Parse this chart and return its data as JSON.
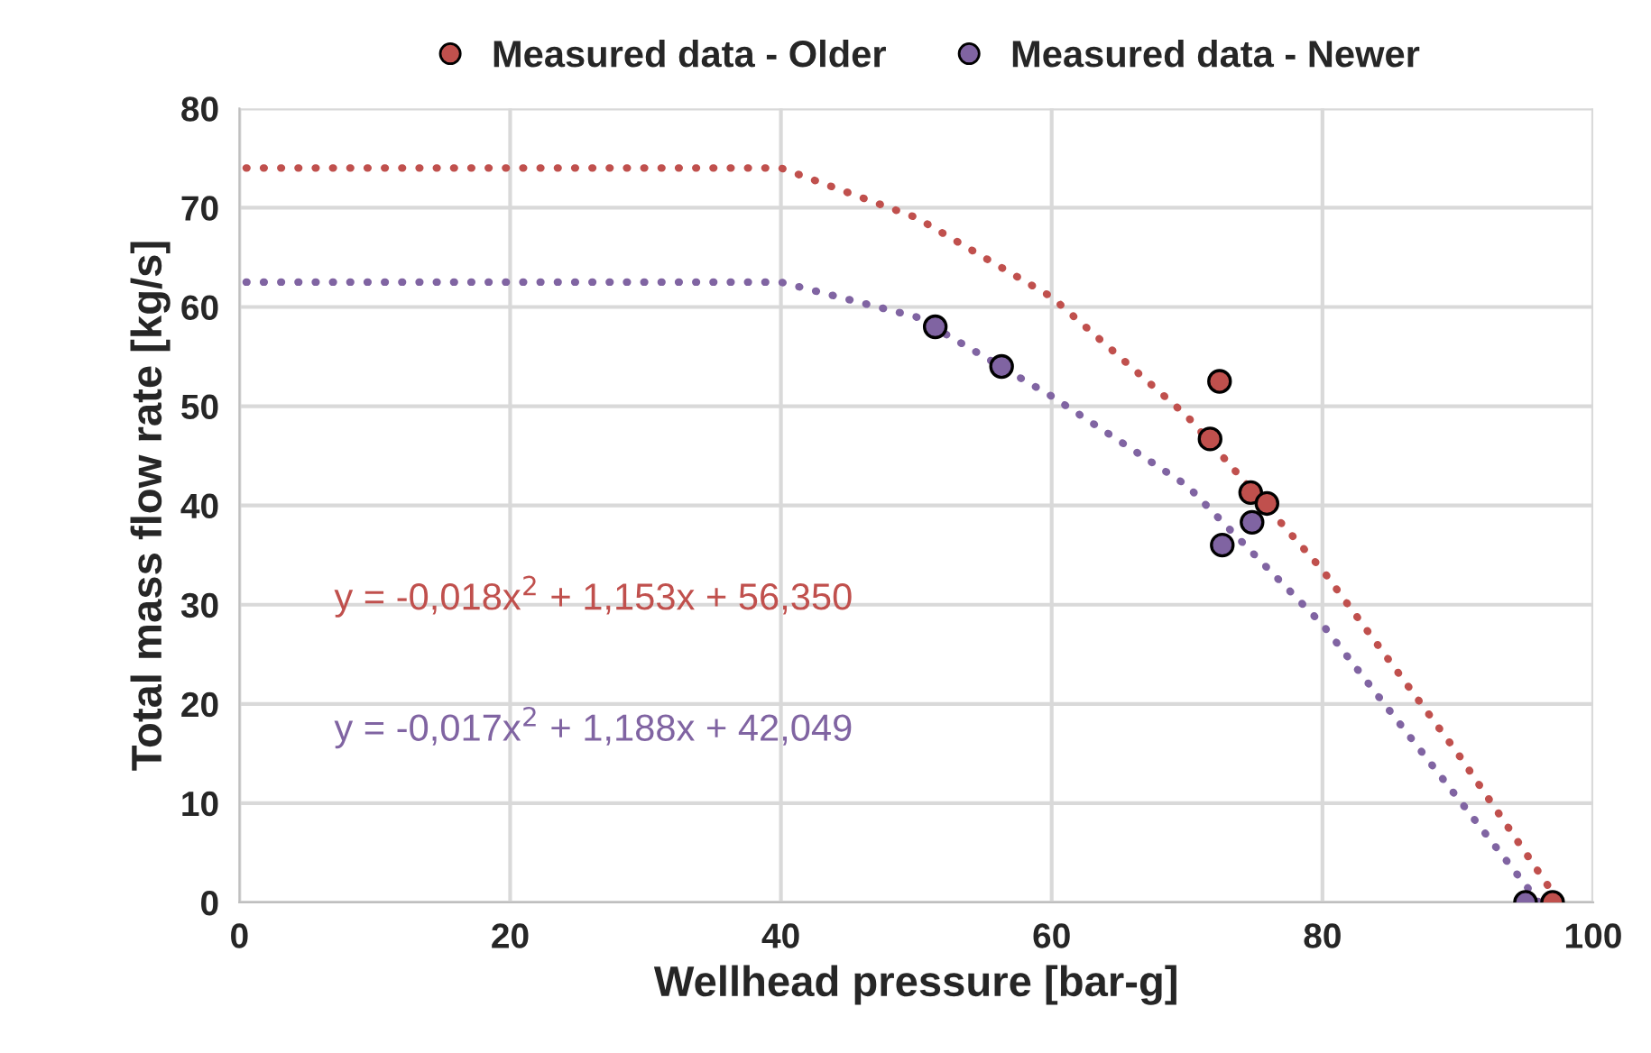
{
  "chart_data": {
    "type": "scatter",
    "xlabel": "Wellhead pressure [bar-g]",
    "ylabel": "Total mass flow rate [kg/s]",
    "xlim": [
      0,
      100
    ],
    "ylim": [
      0,
      80
    ],
    "xticks": [
      0,
      20,
      40,
      60,
      80,
      100
    ],
    "yticks": [
      0,
      10,
      20,
      30,
      40,
      50,
      60,
      70,
      80
    ],
    "grid": true,
    "legend": "top",
    "marker": "circle",
    "series": [
      {
        "name": "Measured data - Older",
        "color": "#c0504d",
        "x": [
          72.4,
          71.7,
          74.7,
          75.9,
          97.0
        ],
        "values": [
          52.5,
          46.7,
          41.3,
          40.2,
          0
        ]
      },
      {
        "name": "Measured data - Newer",
        "color": "#8064a2",
        "x": [
          51.4,
          56.3,
          74.8,
          72.6,
          95.0
        ],
        "values": [
          58.0,
          54.0,
          38.3,
          36.0,
          0
        ]
      },
      {
        "color": "#c0504d",
        "type": "line",
        "line_style": "dotted",
        "marker": "none",
        "x": [
          0.5,
          40,
          50,
          60,
          70,
          80,
          90,
          97.5
        ],
        "values": [
          74,
          74,
          69,
          61,
          49,
          33.5,
          15,
          0
        ]
      },
      {
        "color": "#8064a2",
        "type": "line",
        "line_style": "dotted",
        "marker": "none",
        "x": [
          0.5,
          40,
          50,
          60,
          70,
          80,
          90,
          96
        ],
        "values": [
          62.5,
          62.5,
          59,
          51,
          42,
          28,
          10.5,
          0
        ]
      }
    ],
    "annotations": [
      "y = -0,018x$^{2}$ + 1,153x + 56,350",
      "y = -0,017x$^{2}$ + 1,188x + 42,049"
    ]
  }
}
